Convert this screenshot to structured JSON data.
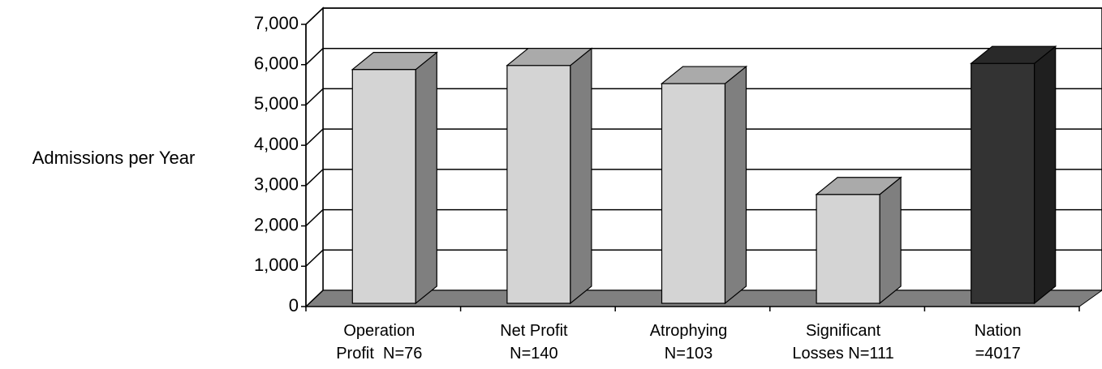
{
  "chart_data": {
    "type": "bar3d",
    "y_label": "Admissions per Year",
    "categories": [
      "Operation\nProfit  N=76",
      "Net Profit\nN=140",
      "Atrophying\nN=103",
      "Significant\nLosses N=111",
      "Nation\n=4017"
    ],
    "values": [
      5800,
      5900,
      5450,
      2700,
      5950
    ],
    "colors": [
      "#d4d4d4",
      "#d4d4d4",
      "#d4d4d4",
      "#d4d4d4",
      "#333333"
    ],
    "ylim": [
      0,
      7000
    ],
    "yticks": [
      0,
      {
        "value": 1000,
        "label": "1,000"
      },
      {
        "value": 2000,
        "label": "2,000"
      },
      {
        "value": 3000,
        "label": "3,000"
      },
      {
        "value": 4000,
        "label": "4,000"
      },
      {
        "value": 5000,
        "label": "5,000"
      },
      {
        "value": 6000,
        "label": "6,000"
      },
      {
        "value": 7000,
        "label": "7,000"
      }
    ],
    "grid": true
  }
}
